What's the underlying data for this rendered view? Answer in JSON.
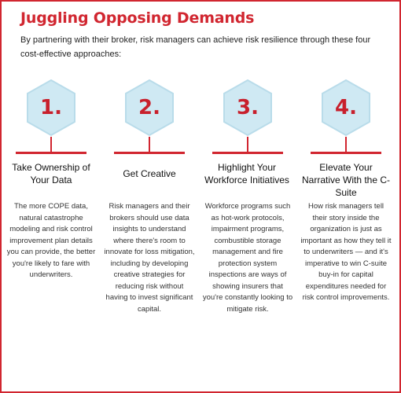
{
  "title": "Juggling Opposing Demands",
  "subtitle": "By partnering with their broker, risk managers can achieve risk resilience through these four cost-effective approaches:",
  "colors": {
    "accent": "#d12630",
    "hex_fill": "#cfe9f3",
    "hex_stroke": "#b9dcea"
  },
  "steps": [
    {
      "number": "1.",
      "heading": "Take Ownership of Your Data",
      "body": "The more COPE data, natural catastrophe modeling and risk control improvement plan details you can provide, the better you're likely to fare with underwriters."
    },
    {
      "number": "2.",
      "heading": "Get Creative",
      "body": "Risk managers and their brokers should use data insights to understand where there's room to innovate for loss mitigation, including by developing creative strategies for reducing risk without having to invest significant capital."
    },
    {
      "number": "3.",
      "heading": "Highlight Your Workforce Initiatives",
      "body": "Workforce programs such as hot-work protocols, impairment programs, combustible storage management and fire protection system inspections are ways of showing insurers that you're constantly looking to mitigate risk."
    },
    {
      "number": "4.",
      "heading": "Elevate Your Narrative With the C-Suite",
      "body": "How risk managers tell their story inside the organization is just as important as how they tell it to underwriters — and it's imperative to win C-suite buy-in for capital expenditures needed for risk control improvements."
    }
  ]
}
